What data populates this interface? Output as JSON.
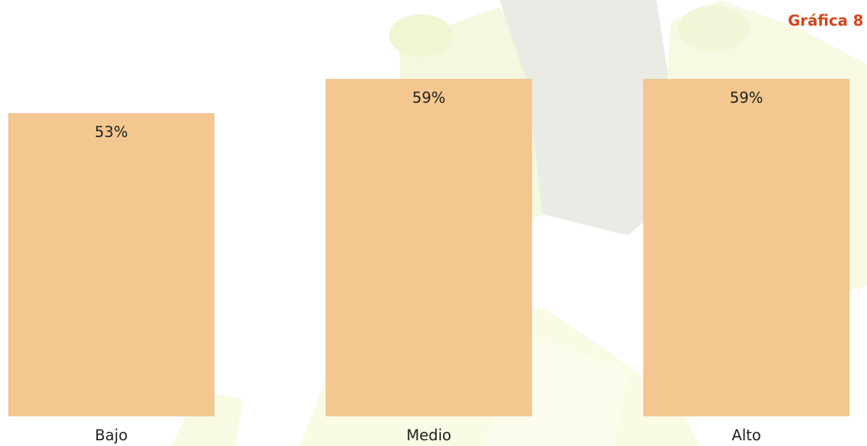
{
  "chart_data": {
    "type": "bar",
    "title": "Gráfica 8",
    "categories": [
      "Bajo",
      "Medio",
      "Alto"
    ],
    "values": [
      53,
      59,
      59
    ],
    "value_labels": [
      "53%",
      "59%",
      "59%"
    ],
    "color": "#f4c790"
  }
}
